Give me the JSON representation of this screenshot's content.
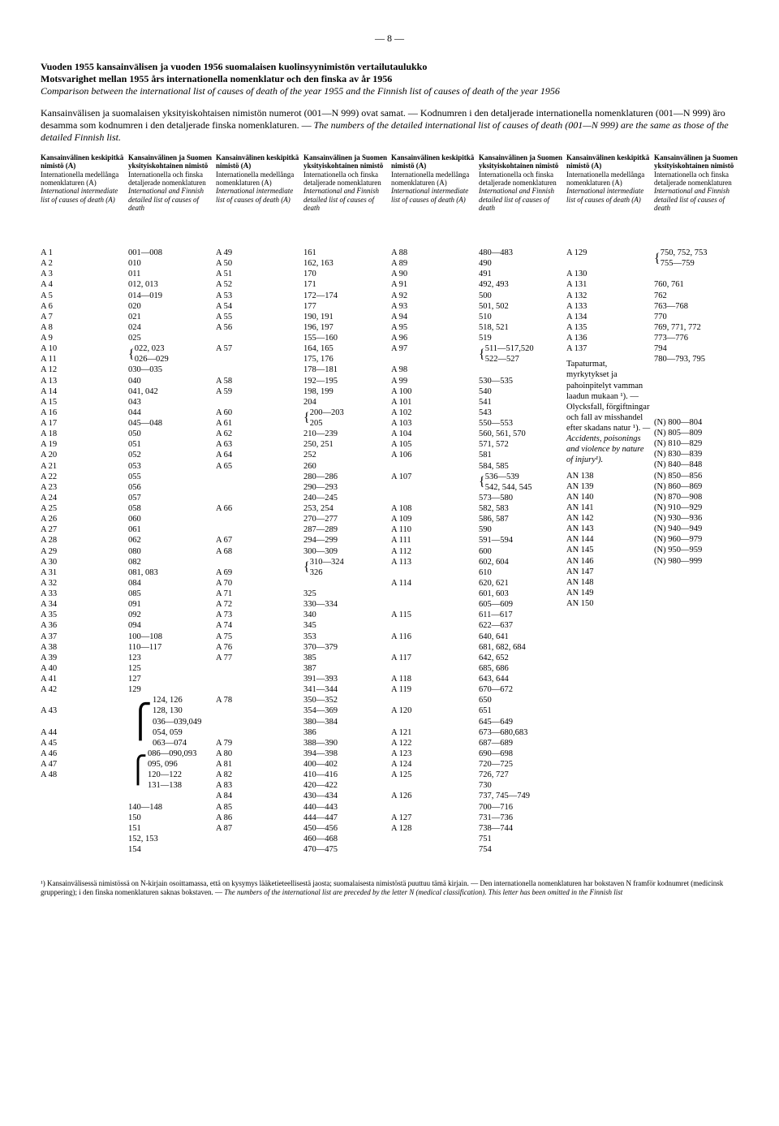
{
  "page_number": "— 8 —",
  "titles": {
    "fi": "Vuoden 1955 kansainvälisen ja vuoden 1956 suomalaisen kuolinsyynimistön vertailutaulukko",
    "sv": "Motsvarighet mellan 1955 års internationella nomenklatur och den finska av år 1956",
    "en": "Comparison between the international list of causes of death of the year 1955 and the Finnish list of causes of death of the year 1956"
  },
  "intro": {
    "fi": "Kansainvälisen ja suomalaisen yksityiskohtaisen nimistön numerot (001—N 999) ovat samat. — Kodnumren i den detaljerade internationella nomenklaturen (001—N 999) äro desamma som kodnumren i den detaljerade finska nomenklaturen. — ",
    "en": "The numbers of the detailed international list of causes of death (001—N 999) are the same as those of the detailed Finnish list."
  },
  "header_a": {
    "t1": "Kansainvälinen keskipitkä nimistö (A)",
    "t2": "Internationella medellånga nomenklaturen (A)",
    "t3": "International intermediate list of causes of death (A)"
  },
  "header_b": {
    "t1": "Kansainvälinen ja Suomen yksityiskohtainen nimistö",
    "t2": "Internationella och finska detaljerade nomenklaturen",
    "t3": "International and Finnish detailed list of causes of death"
  },
  "col1a": [
    "A 1",
    "A 2",
    "A 3",
    "A 4",
    "A 5",
    "A 6",
    "A 7",
    "A 8",
    "A 9",
    "A 10",
    "A 11",
    "A 12",
    "A 13",
    "A 14",
    "A 15",
    "A 16",
    "A 17",
    "A 18",
    "A 19",
    "A 20",
    "A 21",
    "A 22",
    "A 23",
    "A 24",
    "A 25",
    "A 26",
    "A 27",
    "A 28",
    "A 29",
    "A 30",
    "A 31",
    "A 32",
    "A 33",
    "A 34",
    "A 35",
    "A 36",
    "A 37",
    "A 38",
    "A 39",
    "A 40",
    "A 41",
    "A 42",
    "",
    "A 43",
    "",
    "A 44",
    "A 45",
    "A 46",
    "A 47",
    "A 48"
  ],
  "col1b": [
    "001—008",
    "010",
    "011",
    "012, 013",
    "014—019",
    "020",
    "021",
    "024",
    "025",
    "022, 023 / 026—029",
    "030—035",
    "040",
    "041, 042",
    "043",
    "044",
    "045—048",
    "050",
    "051",
    "052",
    "053",
    "055",
    "056",
    "057",
    "058",
    "060",
    "061",
    "062",
    "080",
    "082",
    "081, 083",
    "084",
    "085",
    "091",
    "092",
    "094",
    "100—108",
    "110—117",
    "123",
    "125",
    "127",
    "129",
    "124, 126 / 128, 130 / 036—039,049 / 054, 059 / 063—074",
    "086—090,093 / 095, 096 / 120—122 / 131—138",
    "",
    "140—148",
    "150",
    "151",
    "152, 153",
    "154"
  ],
  "col2a": [
    "A 49",
    "A 50",
    "A 51",
    "A 52",
    "A 53",
    "A 54",
    "A 55",
    "A 56",
    "",
    "A 57",
    "",
    "",
    "A 58",
    "A 59",
    "",
    "A 60",
    "A 61",
    "A 62",
    "A 63",
    "A 64",
    "A 65",
    "",
    "",
    "",
    "A 66",
    "",
    "",
    "A 67",
    "A 68",
    "",
    "A 69",
    "A 70",
    "A 71",
    "A 72",
    "A 73",
    "A 74",
    "A 75",
    "A 76",
    "A 77",
    "",
    "",
    "",
    "A 78",
    "",
    "",
    "",
    "A 79",
    "A 80",
    "A 81",
    "A 82",
    "A 83",
    "A 84",
    "A 85",
    "A 86",
    "A 87"
  ],
  "col2b": [
    "161",
    "162, 163",
    "170",
    "171",
    "172—174",
    "177",
    "190, 191",
    "196, 197",
    "155—160",
    "164, 165",
    "175, 176",
    "178—181",
    "192—195",
    "198, 199",
    "204",
    "200—203 / 205",
    "210—239",
    "250, 251",
    "252",
    "260",
    "280—286",
    "290—293",
    "240—245",
    "253, 254",
    "270—277",
    "287—289",
    "294—299",
    "300—309",
    "310—324 / 326",
    "",
    "325",
    "330—334",
    "340",
    "345",
    "353",
    "370—379",
    "385",
    "387",
    "391—393",
    "341—344",
    "350—352",
    "354—369",
    "380—384",
    "386",
    "388—390",
    "394—398",
    "400—402",
    "410—416",
    "420—422",
    "430—434",
    "440—443",
    "444—447",
    "450—456",
    "460—468",
    "470—475"
  ],
  "col3a": [
    "A 88",
    "A 89",
    "A 90",
    "A 91",
    "A 92",
    "A 93",
    "A 94",
    "A 95",
    "A 96",
    "A 97",
    "",
    "A 98",
    "A 99",
    "A 100",
    "A 101",
    "A 102",
    "A 103",
    "A 104",
    "A 105",
    "A 106",
    "",
    "A 107",
    "",
    "",
    "A 108",
    "A 109",
    "A 110",
    "A 111",
    "A 112",
    "A 113",
    "",
    "A 114",
    "",
    "",
    "A 115",
    "",
    "A 116",
    "",
    "A 117",
    "",
    "A 118",
    "A 119",
    "",
    "A 120",
    "",
    "A 121",
    "A 122",
    "A 123",
    "A 124",
    "A 125",
    "",
    "A 126",
    "",
    "A 127",
    "A 128"
  ],
  "col3b": [
    "480—483",
    "490",
    "491",
    "492, 493",
    "500",
    "501, 502",
    "510",
    "518, 521",
    "519",
    "511—517,520 / 522—527",
    "",
    "530—535",
    "540",
    "541",
    "543",
    "550—553",
    "560, 561, 570",
    "571, 572",
    "581",
    "584, 585",
    "536—539 / 542, 544, 545",
    "573—580",
    "582, 583",
    "586, 587",
    "590",
    "591—594",
    "600",
    "602, 604",
    "610",
    "620, 621",
    "601, 603",
    "605—609",
    "611—617",
    "622—637",
    "640, 641",
    "681, 682, 684",
    "642, 652",
    "685, 686",
    "643, 644",
    "670—672",
    "650",
    "651",
    "645—649",
    "673—680,683",
    "687—689",
    "690—698",
    "720—725",
    "726, 727",
    "730",
    "737, 745—749",
    "700—716",
    "731—736",
    "738—744",
    "751",
    "754"
  ],
  "col4a": [
    "A 129",
    "",
    "A 130",
    "A 131",
    "A 132",
    "A 133",
    "A 134",
    "A 135",
    "A 136",
    "A 137"
  ],
  "col4b": [
    "750, 752, 753 / 755—759",
    "",
    "760, 761",
    "762",
    "763—768",
    "770",
    "769, 771, 772",
    "773—776",
    "794",
    "780—793, 795"
  ],
  "subhead": {
    "fi": "Tapaturmat, myrkytykset ja pahoinpitelyt vamman laadun mukaan ¹). — Olycksfall, förgiftningar och fall av misshandel efter skadans natur ¹).",
    "en": "— Accidents, poisonings and violence by nature of injury¹)."
  },
  "an_a": [
    "AN 138",
    "AN 139",
    "AN 140",
    "AN 141",
    "AN 142",
    "AN 143",
    "AN 144",
    "AN 145",
    "AN 146",
    "AN 147",
    "AN 148",
    "AN 149",
    "AN 150",
    ""
  ],
  "an_b": [
    "(N) 800—804",
    "(N) 805—809",
    "(N) 810—829",
    "(N) 830—839",
    "(N) 840—848",
    "(N) 850—856",
    "(N) 860—869",
    "(N) 870—908",
    "(N) 910—929",
    "(N) 930—936",
    "(N) 940—949",
    "(N) 960—979",
    "(N) 950—959",
    "(N) 980—999"
  ],
  "footnote": {
    "txt1": "¹) Kansainvälisessä nimistössä on N-kirjain osoittamassa, että on kysymys lääketieteellisestä jaosta; suomalaisesta nimistöstä puuttuu tämä kirjain. — Den internationella nomenklaturen har bokstaven N framför kodnumret (medicinsk gruppering); i den finska nomenklaturen saknas bokstaven. — ",
    "txt2": "The numbers of the international list are preceded by the letter N (medical classification). This letter has been omitted in the Finnish list"
  }
}
